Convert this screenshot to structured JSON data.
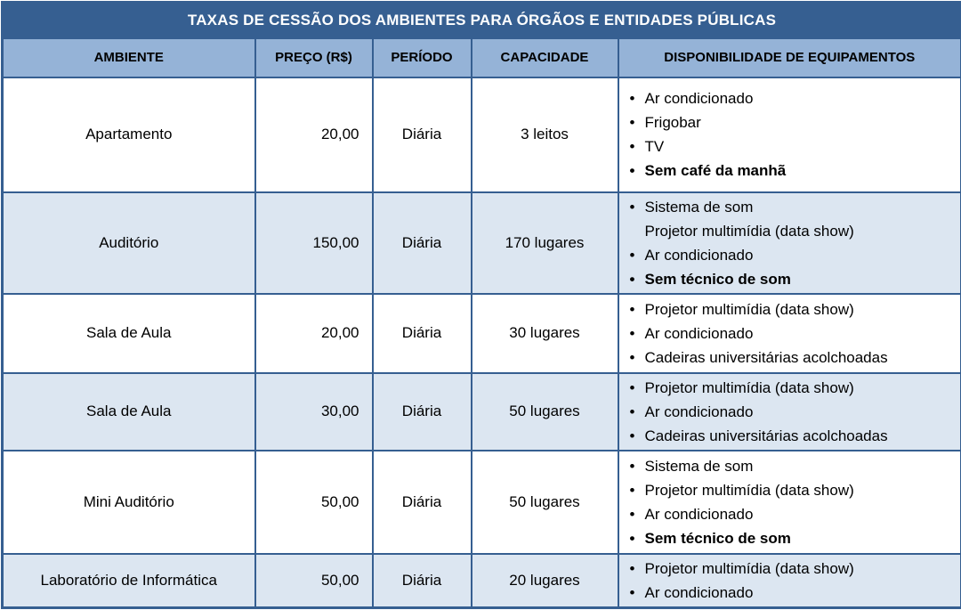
{
  "colors": {
    "title_bg": "#365F91",
    "header_bg": "#95B3D7",
    "row_shaded_bg": "#DCE6F1",
    "row_plain_bg": "#FFFFFF",
    "border_color": "#365F91",
    "title_text": "#FFFFFF",
    "body_text": "#000000"
  },
  "icons": {
    "bullet": "•"
  },
  "table": {
    "title": "TAXAS DE CESSÃO DOS AMBIENTES PARA ÓRGÃOS E ENTIDADES PÚBLICAS",
    "columns": [
      "AMBIENTE",
      "PREÇO (R$)",
      "PERÍODO",
      "CAPACIDADE",
      "DISPONIBILIDADE DE EQUIPAMENTOS"
    ],
    "rows": [
      {
        "ambiente": "Apartamento",
        "preco": "20,00",
        "periodo": "Diária",
        "capacidade": "3 leitos",
        "shaded": false,
        "equipamentos": [
          {
            "text": "Ar condicionado",
            "bullet": true,
            "bold": false
          },
          {
            "text": "Frigobar",
            "bullet": true,
            "bold": false
          },
          {
            "text": "TV",
            "bullet": true,
            "bold": false
          },
          {
            "text": "Sem café da manhã",
            "bullet": true,
            "bold": true
          }
        ]
      },
      {
        "ambiente": "Auditório",
        "preco": "150,00",
        "periodo": "Diária",
        "capacidade": "170 lugares",
        "shaded": true,
        "equipamentos": [
          {
            "text": "Sistema de som",
            "bullet": true,
            "bold": false
          },
          {
            "text": "Projetor multimídia (data show)",
            "bullet": false,
            "bold": false
          },
          {
            "text": "Ar condicionado",
            "bullet": true,
            "bold": false
          },
          {
            "text": "Sem técnico de som",
            "bullet": true,
            "bold": true
          }
        ]
      },
      {
        "ambiente": "Sala de Aula",
        "preco": "20,00",
        "periodo": "Diária",
        "capacidade": "30 lugares",
        "shaded": false,
        "equipamentos": [
          {
            "text": "Projetor multimídia (data show)",
            "bullet": true,
            "bold": false
          },
          {
            "text": "Ar condicionado",
            "bullet": true,
            "bold": false
          },
          {
            "text": "Cadeiras universitárias acolchoadas",
            "bullet": true,
            "bold": false
          }
        ]
      },
      {
        "ambiente": "Sala de Aula",
        "preco": "30,00",
        "periodo": "Diária",
        "capacidade": "50 lugares",
        "shaded": true,
        "equipamentos": [
          {
            "text": "Projetor multimídia (data show)",
            "bullet": true,
            "bold": false
          },
          {
            "text": "Ar condicionado",
            "bullet": true,
            "bold": false
          },
          {
            "text": "Cadeiras universitárias acolchoadas",
            "bullet": true,
            "bold": false
          }
        ]
      },
      {
        "ambiente": "Mini Auditório",
        "preco": "50,00",
        "periodo": "Diária",
        "capacidade": "50 lugares",
        "shaded": false,
        "equipamentos": [
          {
            "text": "Sistema de som",
            "bullet": true,
            "bold": false
          },
          {
            "text": "Projetor multimídia (data show)",
            "bullet": true,
            "bold": false
          },
          {
            "text": "Ar condicionado",
            "bullet": true,
            "bold": false
          },
          {
            "text": "Sem técnico de som",
            "bullet": true,
            "bold": true
          }
        ]
      },
      {
        "ambiente": "Laboratório de Informática",
        "preco": "50,00",
        "periodo": "Diária",
        "capacidade": "20 lugares",
        "shaded": true,
        "equipamentos": [
          {
            "text": "Projetor multimídia (data show)",
            "bullet": true,
            "bold": false
          },
          {
            "text": "Ar condicionado",
            "bullet": true,
            "bold": false
          }
        ]
      }
    ]
  }
}
